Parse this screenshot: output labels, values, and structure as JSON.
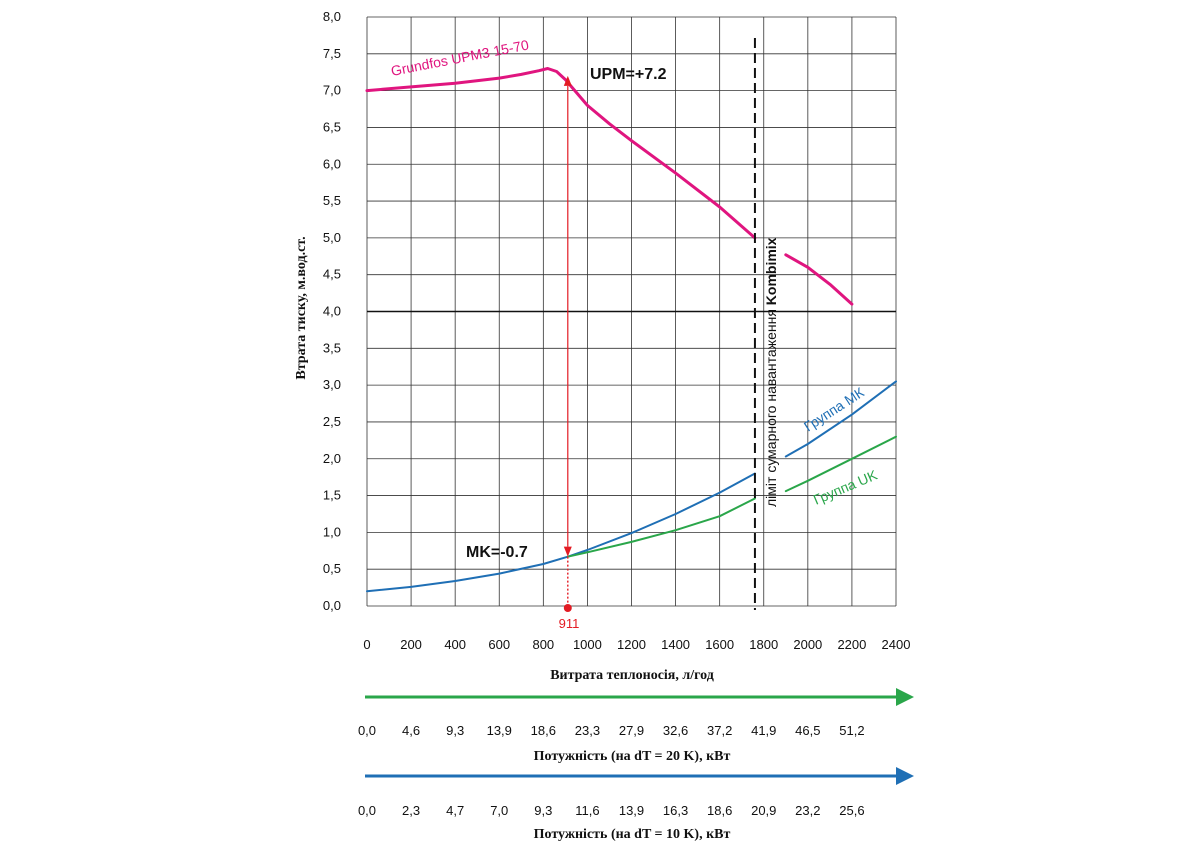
{
  "chart_data": {
    "type": "line",
    "xlabel": "Витрата теплоносія, л/год",
    "ylabel": "Втрата тиску, м.вод.ст.",
    "xlim": [
      0,
      2400
    ],
    "ylim": [
      0,
      8
    ],
    "x_ticks": [
      "0",
      "200",
      "400",
      "600",
      "800",
      "1000",
      "1200",
      "1400",
      "1600",
      "1800",
      "2000",
      "2200",
      "2400"
    ],
    "y_ticks": [
      "0,0",
      "0,5",
      "1,0",
      "1,5",
      "2,0",
      "2,5",
      "3,0",
      "3,5",
      "4,0",
      "4,5",
      "5,0",
      "5,5",
      "6,0",
      "6,5",
      "7,0",
      "7,5",
      "8,0"
    ],
    "grid": true,
    "reference_line": {
      "y": 4.0
    },
    "colors": {
      "pump": "#e0157f",
      "mk": "#1f6fb5",
      "uk": "#2aa64a",
      "marker": "#e31b23"
    },
    "series": [
      {
        "name": "Grundfos UPM3 15-70",
        "color": "#e0157f",
        "x": [
          0,
          200,
          400,
          600,
          700,
          780,
          820,
          860,
          900,
          1000,
          1100,
          1200,
          1400,
          1600,
          1760,
          1900,
          2000,
          2100,
          2200
        ],
        "y": [
          7.0,
          7.05,
          7.1,
          7.17,
          7.22,
          7.27,
          7.3,
          7.26,
          7.15,
          6.8,
          6.55,
          6.32,
          5.88,
          5.42,
          5.0,
          4.77,
          4.6,
          4.37,
          4.1
        ],
        "gap": [
          1760,
          1890
        ]
      },
      {
        "name": "Группа МК",
        "color": "#1f6fb5",
        "x": [
          0,
          200,
          400,
          600,
          800,
          911,
          1000,
          1200,
          1400,
          1600,
          1760,
          1900,
          2000,
          2200,
          2400
        ],
        "y": [
          0.2,
          0.26,
          0.34,
          0.44,
          0.57,
          0.67,
          0.76,
          0.99,
          1.25,
          1.54,
          1.8,
          2.03,
          2.2,
          2.6,
          3.05
        ],
        "gap": [
          1760,
          1890
        ]
      },
      {
        "name": "Группа UK",
        "color": "#2aa64a",
        "x": [
          911,
          1000,
          1200,
          1400,
          1600,
          1760,
          1900,
          2000,
          2200,
          2400
        ],
        "y": [
          0.67,
          0.73,
          0.87,
          1.03,
          1.22,
          1.46,
          1.56,
          1.7,
          2.0,
          2.3
        ],
        "gap": [
          1760,
          1890
        ]
      }
    ],
    "limit": {
      "x": 1760,
      "label_prefix": "ліміт сумарного навантаження ",
      "label_brand": "Kombimix"
    },
    "operating_point": {
      "x": 911,
      "x_label": "911",
      "pump_y": 7.2,
      "system_y": 0.67
    },
    "annotations": {
      "pump_head": "UPM=+7.2",
      "system_loss": "MK=-0.7"
    },
    "power_axes": [
      {
        "label": "Потужність (на dT = 20 K), кВт",
        "color": "#2aa64a",
        "ticks": [
          "0,0",
          "4,6",
          "9,3",
          "13,9",
          "18,6",
          "23,3",
          "27,9",
          "32,6",
          "37,2",
          "41,9",
          "46,5",
          "51,2"
        ]
      },
      {
        "label": "Потужність (на dT = 10 K), кВт",
        "color": "#1f6fb5",
        "ticks": [
          "0,0",
          "2,3",
          "4,7",
          "7,0",
          "9,3",
          "11,6",
          "13,9",
          "16,3",
          "18,6",
          "20,9",
          "23,2",
          "25,6"
        ]
      }
    ]
  }
}
